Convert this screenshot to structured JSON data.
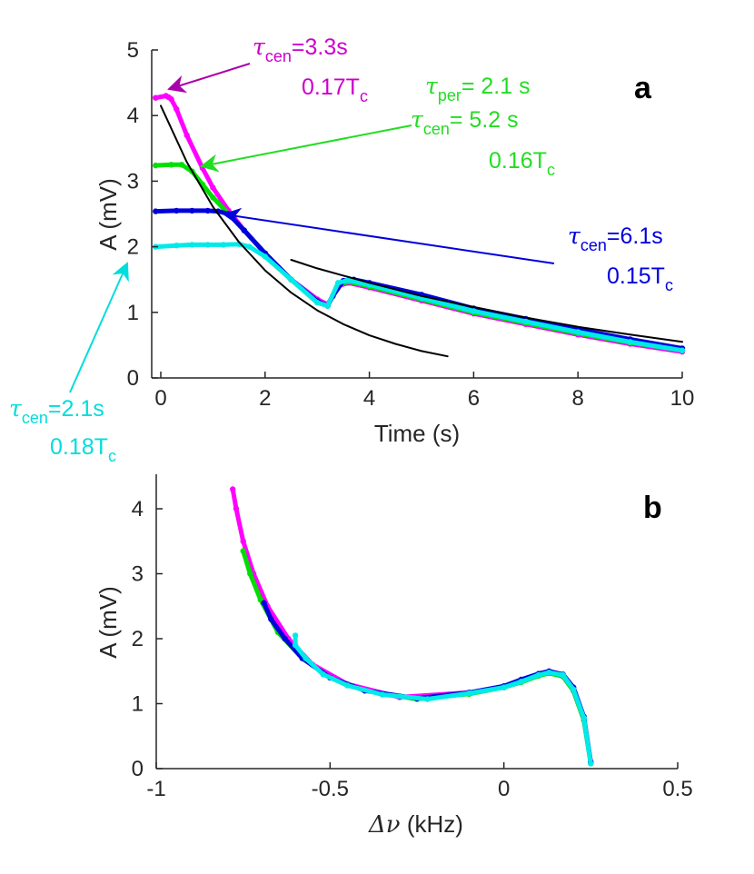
{
  "chart_data": [
    {
      "panel": "a",
      "type": "line",
      "panel_label": "a",
      "xlabel": "Time (s)",
      "ylabel": "A (mV)",
      "xlim": [
        -0.2,
        10
      ],
      "ylim": [
        0,
        5
      ],
      "x_ticks": [
        0,
        2,
        4,
        6,
        8,
        10
      ],
      "y_ticks": [
        0,
        1,
        2,
        3,
        4,
        5
      ],
      "grid": false,
      "series": [
        {
          "name": "magenta",
          "color": "#ff00ff",
          "x": [
            -0.1,
            0.1,
            0.15,
            0.2,
            0.3,
            0.5,
            0.8,
            1.0,
            1.3,
            1.6,
            2.0,
            2.5,
            3.0,
            3.2,
            3.4,
            3.6,
            4.0,
            5.0,
            6.0,
            7.0,
            8.0,
            9.0,
            10.0
          ],
          "y": [
            4.27,
            4.3,
            4.28,
            4.25,
            4.1,
            3.7,
            3.2,
            2.9,
            2.55,
            2.25,
            1.9,
            1.5,
            1.2,
            1.12,
            1.4,
            1.45,
            1.38,
            1.18,
            0.98,
            0.82,
            0.66,
            0.52,
            0.4
          ]
        },
        {
          "name": "green",
          "color": "#00e000",
          "x": [
            -0.1,
            0.2,
            0.4,
            0.6,
            0.8,
            1.0,
            1.3,
            1.6,
            2.0,
            2.5,
            3.0,
            3.2,
            3.4,
            3.6,
            4.0,
            5.0,
            6.0,
            7.0,
            8.0,
            9.0,
            10.0
          ],
          "y": [
            3.24,
            3.25,
            3.25,
            3.15,
            2.95,
            2.75,
            2.5,
            2.25,
            1.9,
            1.5,
            1.15,
            1.1,
            1.42,
            1.47,
            1.4,
            1.2,
            1.0,
            0.84,
            0.68,
            0.54,
            0.42
          ]
        },
        {
          "name": "blue",
          "color": "#0000dd",
          "x": [
            -0.1,
            0.3,
            0.6,
            0.9,
            1.1,
            1.3,
            1.6,
            2.0,
            2.5,
            3.0,
            3.2,
            3.3,
            3.5,
            3.7,
            4.0,
            5.0,
            6.0,
            7.0,
            8.0,
            9.0,
            10.0
          ],
          "y": [
            2.54,
            2.55,
            2.55,
            2.55,
            2.54,
            2.5,
            2.25,
            1.9,
            1.5,
            1.17,
            1.1,
            1.25,
            1.48,
            1.5,
            1.45,
            1.27,
            1.06,
            0.9,
            0.74,
            0.59,
            0.45
          ]
        },
        {
          "name": "cyan",
          "color": "#00eaea",
          "x": [
            -0.1,
            0.3,
            0.6,
            0.9,
            1.2,
            1.5,
            1.7,
            2.0,
            2.5,
            3.0,
            3.2,
            3.4,
            3.6,
            4.0,
            5.0,
            6.0,
            7.0,
            8.0,
            9.0,
            10.0
          ],
          "y": [
            2.0,
            2.02,
            2.03,
            2.03,
            2.03,
            2.04,
            2.0,
            1.85,
            1.5,
            1.15,
            1.1,
            1.45,
            1.49,
            1.42,
            1.22,
            1.02,
            0.86,
            0.7,
            0.55,
            0.42
          ]
        },
        {
          "name": "fit-early",
          "color": "#000000",
          "x": [
            0,
            0.5,
            1,
            1.5,
            2,
            2.5,
            3,
            3.5,
            4,
            4.5,
            5,
            5.5
          ],
          "y": [
            4.15,
            3.29,
            2.61,
            2.07,
            1.64,
            1.3,
            1.03,
            0.82,
            0.65,
            0.52,
            0.41,
            0.33
          ]
        },
        {
          "name": "fit-late",
          "color": "#000000",
          "x": [
            2.5,
            3.0,
            4.0,
            5.0,
            6.0,
            7.0,
            8.0,
            9.0,
            10.0
          ],
          "y": [
            1.8,
            1.67,
            1.45,
            1.25,
            1.08,
            0.92,
            0.78,
            0.66,
            0.55
          ]
        }
      ],
      "annotations": [
        {
          "color": "#cc00cc",
          "sym": "τ",
          "sub": "cen",
          "rest": "=3.3s",
          "line2": "0.17T",
          "line2_sub": "c",
          "arrow_target": [
            0.3,
            4.3
          ]
        },
        {
          "color": "#22dd22",
          "sym": "τ",
          "sub": "per",
          "rest": "= 2.1 s",
          "line2_sym": "τ",
          "line2_sub": "cen",
          "line2_rest": "= 5.2 s",
          "line3": "0.16T",
          "line3_sub": "c",
          "arrow_target": [
            0.75,
            3.27
          ]
        },
        {
          "color": "#0000dd",
          "sym": "τ",
          "sub": "cen",
          "rest": "=6.1s",
          "line2": "0.15T",
          "line2_sub": "c",
          "arrow_target": [
            1.15,
            2.55
          ]
        },
        {
          "color": "#00dddd",
          "sym": "τ",
          "sub": "cen",
          "rest": "=2.1s",
          "line2": "0.18T",
          "line2_sub": "c",
          "arrow_target": [
            -0.45,
            1.9
          ]
        }
      ]
    },
    {
      "panel": "b",
      "type": "line",
      "panel_label": "b",
      "xlabel_sym": "Δν",
      "xlabel": " (kHz)",
      "ylabel": "A (mV)",
      "xlim": [
        -1,
        0.5
      ],
      "ylim": [
        0,
        4.5
      ],
      "x_ticks": [
        -1,
        -0.5,
        0,
        0.5
      ],
      "x_tick_labels": [
        "-1",
        "-0.5",
        "0",
        "0.5"
      ],
      "y_ticks": [
        0,
        1,
        2,
        3,
        4
      ],
      "grid": false,
      "series": [
        {
          "name": "magenta",
          "color": "#ff00ff",
          "x": [
            -0.78,
            -0.77,
            -0.75,
            -0.72,
            -0.68,
            -0.62,
            -0.55,
            -0.45,
            -0.3,
            -0.1,
            0.0,
            0.05,
            0.1,
            0.13,
            0.17,
            0.2,
            0.23,
            0.25
          ],
          "y": [
            4.3,
            4.0,
            3.5,
            3.0,
            2.5,
            2.0,
            1.6,
            1.3,
            1.1,
            1.17,
            1.25,
            1.35,
            1.45,
            1.48,
            1.42,
            1.2,
            0.75,
            0.1
          ]
        },
        {
          "name": "green",
          "color": "#00dd00",
          "x": [
            -0.75,
            -0.73,
            -0.7,
            -0.65,
            -0.58,
            -0.5,
            -0.4,
            -0.25,
            -0.1,
            0.0,
            0.05,
            0.1,
            0.13,
            0.17,
            0.2,
            0.23,
            0.25
          ],
          "y": [
            3.35,
            3.0,
            2.6,
            2.1,
            1.7,
            1.4,
            1.2,
            1.07,
            1.15,
            1.25,
            1.33,
            1.43,
            1.47,
            1.42,
            1.2,
            0.75,
            0.08
          ]
        },
        {
          "name": "blue",
          "color": "#0000dd",
          "x": [
            -0.69,
            -0.67,
            -0.63,
            -0.58,
            -0.5,
            -0.4,
            -0.25,
            -0.1,
            0.0,
            0.05,
            0.1,
            0.13,
            0.17,
            0.2,
            0.23,
            0.25
          ],
          "y": [
            2.55,
            2.3,
            2.0,
            1.7,
            1.4,
            1.2,
            1.08,
            1.17,
            1.27,
            1.37,
            1.46,
            1.5,
            1.45,
            1.25,
            0.8,
            0.1
          ]
        },
        {
          "name": "cyan",
          "color": "#00eaea",
          "x": [
            -0.6,
            -0.6,
            -0.57,
            -0.52,
            -0.45,
            -0.35,
            -0.22,
            -0.1,
            0.0,
            0.05,
            0.1,
            0.13,
            0.17,
            0.2,
            0.23,
            0.25
          ],
          "y": [
            2.05,
            1.9,
            1.7,
            1.45,
            1.28,
            1.14,
            1.07,
            1.16,
            1.25,
            1.34,
            1.44,
            1.48,
            1.44,
            1.22,
            0.78,
            0.08
          ]
        }
      ]
    }
  ]
}
